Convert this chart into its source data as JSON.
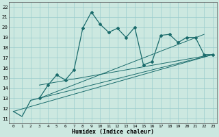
{
  "xlabel": "Humidex (Indice chaleur)",
  "xlim": [
    -0.5,
    23.5
  ],
  "ylim": [
    10.5,
    22.5
  ],
  "xticks": [
    0,
    1,
    2,
    3,
    4,
    5,
    6,
    7,
    8,
    9,
    10,
    11,
    12,
    13,
    14,
    15,
    16,
    17,
    18,
    19,
    20,
    21,
    22,
    23
  ],
  "yticks": [
    11,
    12,
    13,
    14,
    15,
    16,
    17,
    18,
    19,
    20,
    21,
    22
  ],
  "bg_color": "#cce8e0",
  "grid_color": "#99cccc",
  "line_color": "#1a6b6b",
  "curve_x": [
    0,
    1,
    2,
    3,
    4,
    5,
    6,
    7,
    8,
    9,
    10,
    11,
    12,
    13,
    14,
    15,
    16,
    17,
    18,
    19,
    20,
    21,
    22,
    23
  ],
  "curve_y": [
    11.7,
    11.2,
    12.8,
    13.0,
    14.3,
    15.3,
    14.8,
    15.8,
    19.9,
    21.5,
    20.3,
    19.5,
    19.9,
    19.0,
    20.0,
    16.3,
    16.6,
    19.2,
    19.3,
    18.5,
    19.0,
    19.0,
    17.3,
    17.3
  ],
  "straight_lines": [
    {
      "x": [
        0,
        23
      ],
      "y": [
        11.7,
        17.3
      ]
    },
    {
      "x": [
        3,
        23
      ],
      "y": [
        13.0,
        17.3
      ]
    },
    {
      "x": [
        3,
        23
      ],
      "y": [
        14.3,
        17.3
      ]
    },
    {
      "x": [
        3,
        22
      ],
      "y": [
        13.0,
        19.3
      ]
    }
  ],
  "marker_x": [
    3,
    4,
    5,
    6,
    7,
    8,
    9,
    10,
    11,
    12,
    13,
    14,
    15,
    16,
    17,
    18,
    19,
    20,
    21,
    22,
    23
  ],
  "marker_y": [
    13.0,
    14.3,
    15.3,
    14.8,
    15.8,
    19.9,
    21.5,
    20.3,
    19.5,
    19.9,
    19.0,
    20.0,
    16.3,
    16.6,
    19.2,
    19.3,
    18.5,
    19.0,
    19.0,
    17.3,
    17.3
  ]
}
